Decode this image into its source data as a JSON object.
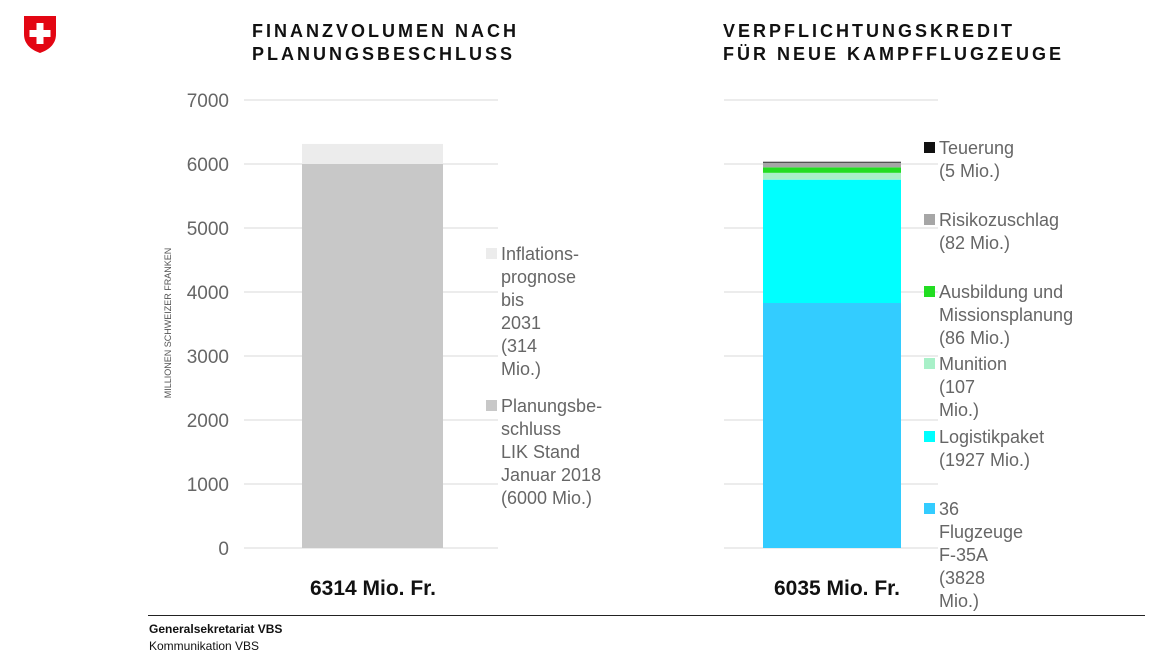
{
  "footer": {
    "org": "Generalsekretariat VBS",
    "dept": "Kommunikation VBS"
  },
  "chart_data": [
    {
      "type": "bar",
      "stacked": true,
      "title": [
        "FINANZVOLUMEN NACH",
        "PLANUNGSBESCHLUSS"
      ],
      "ylabel": "MILLIONEN SCHWEIZER FRANKEN",
      "ylim": [
        0,
        7000
      ],
      "yticks": [
        0,
        1000,
        2000,
        3000,
        4000,
        5000,
        6000,
        7000
      ],
      "grid": true,
      "total_label": "6314 Mio. Fr.",
      "series": [
        {
          "name": "Planungsbeschluss LIK Stand Januar 2018 (6000 Mio.)",
          "legend_text": "Planungsbe-\nschluss\nLIK Stand\nJanuar 2018\n(6000 Mio.)",
          "value": 6000,
          "color": "#c8c8c8"
        },
        {
          "name": "Inflationsprognose bis 2031 (314 Mio.)",
          "legend_text": "Inflations-\nprognose bis\n2031\n(314 Mio.)",
          "value": 314,
          "color": "#ececec"
        }
      ]
    },
    {
      "type": "bar",
      "stacked": true,
      "title": [
        "VERPFLICHTUNGSKREDIT",
        "FÜR NEUE KAMPFFLUGZEUGE"
      ],
      "ylim": [
        0,
        7000
      ],
      "grid": true,
      "total_label": "6035 Mio. Fr.",
      "series": [
        {
          "name": "36 Flugzeuge F-35A (3828 Mio.)",
          "legend_text": "36 Flugzeuge F-35A\n(3828 Mio.)",
          "value": 3828,
          "color": "#33ccff"
        },
        {
          "name": "Logistikpaket (1927 Mio.)",
          "legend_text": "Logistikpaket\n(1927 Mio.)",
          "value": 1927,
          "color": "#00ffff"
        },
        {
          "name": "Munition (107 Mio.)",
          "legend_text": "Munition (107 Mio.)",
          "value": 107,
          "color": "#a8f0c8"
        },
        {
          "name": "Ausbildung und Missionsplanung (86 Mio.)",
          "legend_text": "Ausbildung und\nMissionsplanung\n(86 Mio.)",
          "value": 86,
          "color": "#22dd22"
        },
        {
          "name": "Risikozuschlag (82 Mio.)",
          "legend_text": "Risikozuschlag\n(82 Mio.)",
          "value": 82,
          "color": "#a6a6a6"
        },
        {
          "name": "Teuerung (5 Mio.)",
          "legend_text": "Teuerung (5 Mio.)",
          "value": 5,
          "color": "#111111"
        }
      ]
    }
  ]
}
